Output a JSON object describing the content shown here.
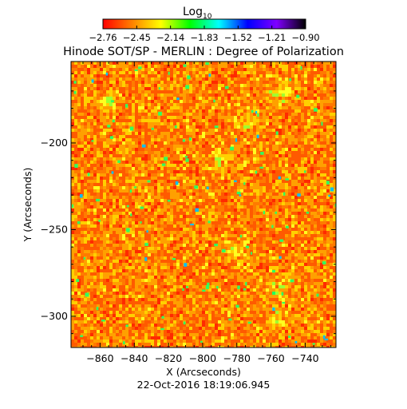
{
  "chart_data": {
    "type": "heatmap",
    "title": "Hinode SOT/SP - MERLIN : Degree of Polarization",
    "colorbar": {
      "label_base": "Log",
      "label_sub": "10",
      "ticks": [
        "−2.76",
        "−2.45",
        "−2.14",
        "−1.83",
        "−1.52",
        "−1.21",
        "−0.90"
      ],
      "range": [
        -2.76,
        -0.9
      ],
      "colors": [
        "#ff0000",
        "#ff8000",
        "#ffff00",
        "#00ff00",
        "#00ffff",
        "#0000ff",
        "#8000ff",
        "#000000"
      ]
    },
    "xlabel": "X (Arcseconds)",
    "ylabel": "Y (Arcseconds)",
    "xlim": [
      -877,
      -722
    ],
    "ylim": [
      -318,
      -153
    ],
    "xticks": [
      -860,
      -840,
      -820,
      -800,
      -780,
      -760,
      -740
    ],
    "xtick_labels": [
      "−860",
      "−840",
      "−820",
      "−800",
      "−780",
      "−760",
      "−740"
    ],
    "yticks": [
      -200,
      -250,
      -300
    ],
    "ytick_labels": [
      "−200",
      "−250",
      "−300"
    ],
    "timestamp": "22-Oct-2016 18:19:06.945",
    "map_palette": [
      "#ff2a00",
      "#ff5a00",
      "#ff7a00",
      "#ffa000",
      "#ffd000",
      "#ffff20",
      "#a0ff30",
      "#20ff60",
      "#00ffd0",
      "#2060ff"
    ]
  }
}
